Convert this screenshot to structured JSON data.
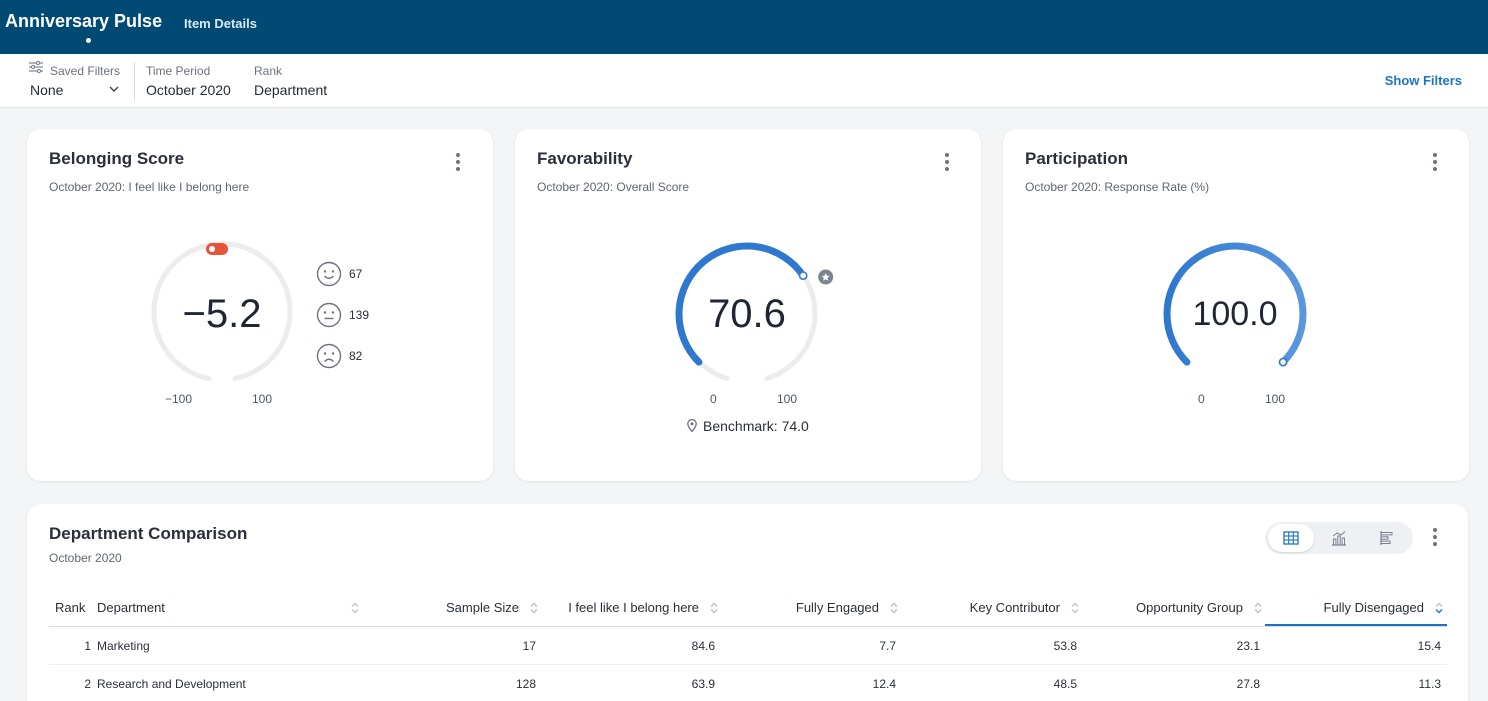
{
  "header": {
    "app_title": "Anniversary Pulse",
    "nav": [
      {
        "label": "Item Details"
      }
    ]
  },
  "filters": {
    "saved": {
      "label": "Saved Filters",
      "value": "None"
    },
    "time_period": {
      "label": "Time Period",
      "value": "October 2020"
    },
    "rank": {
      "label": "Rank",
      "value": "Department"
    },
    "show_filters_label": "Show Filters"
  },
  "cards": {
    "belonging": {
      "title": "Belonging Score",
      "subtitle": "October 2020: I feel like I belong here",
      "value": "−5.2",
      "min_label": "−100",
      "max_label": "100",
      "faces": [
        {
          "icon": "smile-face-icon",
          "count": "67"
        },
        {
          "icon": "neutral-face-icon",
          "count": "139"
        },
        {
          "icon": "sad-face-icon",
          "count": "82"
        }
      ],
      "gauge": {
        "min": -100,
        "max": 100,
        "value": -5.2
      }
    },
    "favorability": {
      "title": "Favorability",
      "subtitle": "October 2020: Overall Score",
      "value": "70.6",
      "min_label": "0",
      "max_label": "100",
      "benchmark_label": "Benchmark: 74.0",
      "gauge": {
        "min": 0,
        "max": 100,
        "value": 70.6,
        "benchmark": 74.0
      }
    },
    "participation": {
      "title": "Participation",
      "subtitle": "October 2020: Response Rate (%)",
      "value": "100.0",
      "min_label": "0",
      "max_label": "100",
      "gauge": {
        "min": 0,
        "max": 100,
        "value": 100.0
      }
    }
  },
  "comparison": {
    "title": "Department Comparison",
    "subtitle": "October 2020",
    "columns": [
      "Rank",
      "Department",
      "Sample Size",
      "I feel like I belong here",
      "Fully Engaged",
      "Key Contributor",
      "Opportunity Group",
      "Fully Disengaged"
    ],
    "sorted_column": "Fully Disengaged",
    "rows": [
      [
        "1",
        "Marketing",
        "17",
        "84.6",
        "7.7",
        "53.8",
        "23.1",
        "15.4"
      ],
      [
        "2",
        "Research and Development",
        "128",
        "63.9",
        "12.4",
        "48.5",
        "27.8",
        "11.3"
      ]
    ]
  },
  "colors": {
    "topbar": "#004a73",
    "accent": "#1e74c4",
    "gauge_blue": "#2f78d0",
    "gauge_track": "#ececec",
    "belonging_marker": "#e8513a"
  }
}
